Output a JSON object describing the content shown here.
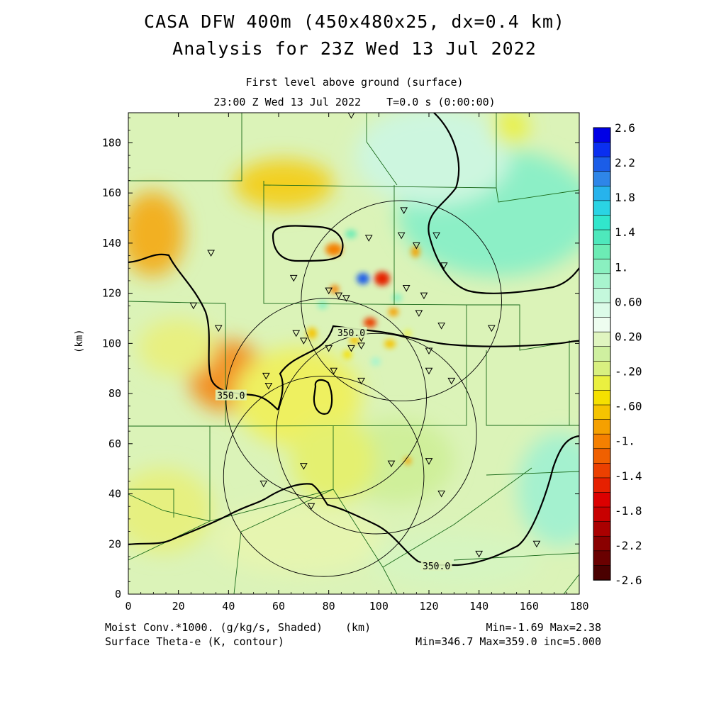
{
  "header": {
    "title_line1": "CASA DFW 400m (450x480x25, dx=0.4 km)",
    "title_line2": "Analysis for 23Z Wed 13 Jul 2022",
    "subtitle_line1": "First level above ground (surface)",
    "subtitle_line2": "23:00 Z Wed 13 Jul 2022    T=0.0 s (0:00:00)"
  },
  "footer": {
    "left_line1": "Moist Conv.*1000. (g/kg/s, Shaded)",
    "left_line2": "Surface Theta-e (K, contour)",
    "center_unit": "(km)",
    "right_line1": "Min=-1.69 Max=2.38",
    "right_line2": "Min=346.7 Max=359.0 inc=5.000"
  },
  "chart_data": {
    "type": "heatmap",
    "title": "CASA DFW 400m (450x480x25, dx=0.4 km) Analysis for 23Z Wed 13 Jul 2022",
    "xlabel": "(km)",
    "ylabel": "(km)",
    "xlim": [
      0,
      180
    ],
    "ylim": [
      0,
      192
    ],
    "x_ticks": [
      0,
      20,
      40,
      60,
      80,
      100,
      120,
      140,
      160,
      180
    ],
    "y_ticks": [
      0,
      20,
      40,
      60,
      80,
      100,
      120,
      140,
      160,
      180
    ],
    "field_range": {
      "min": -1.69,
      "max": 2.38
    },
    "contour_range": {
      "min": 346.7,
      "max": 359.0,
      "inc": 5.0
    },
    "contour_labels": [
      {
        "text": "350.0",
        "x": 89,
        "y": 104
      },
      {
        "text": "350.0",
        "x": 41,
        "y": 79
      },
      {
        "text": "350.0",
        "x": 123,
        "y": 11
      }
    ],
    "colorbar": {
      "labels": [
        "2.6",
        "2.2",
        "1.8",
        "1.4",
        "1.",
        "0.60",
        "0.20",
        "-.20",
        "-.60",
        "-1.",
        "-1.4",
        "-1.8",
        "-2.2",
        "-2.6"
      ],
      "colors": [
        "#0000e6",
        "#0a2ff0",
        "#1b5de8",
        "#2e86e8",
        "#27b3ec",
        "#2ad4e4",
        "#31e6cc",
        "#4ee8bc",
        "#6cecb5",
        "#8af0c0",
        "#a8f4ce",
        "#c4f8dc",
        "#dcfbe8",
        "#eefdf0",
        "#e0f5c0",
        "#cff0a0",
        "#d8f080",
        "#eaf040",
        "#f5e000",
        "#f5c400",
        "#f5a000",
        "#f58000",
        "#f06000",
        "#eb4000",
        "#e62000",
        "#dc0000",
        "#c80000",
        "#aa0000",
        "#8a0000",
        "#6a0000",
        "#4a0000"
      ]
    },
    "radar_circles": [
      {
        "cx": 78,
        "cy": 47,
        "r": 40
      },
      {
        "cx": 109,
        "cy": 117,
        "r": 40
      },
      {
        "cx": 79,
        "cy": 78,
        "r": 40
      },
      {
        "cx": 99,
        "cy": 64,
        "r": 40
      }
    ],
    "stations": [
      [
        89,
        191
      ],
      [
        110,
        153
      ],
      [
        33,
        136
      ],
      [
        96,
        142
      ],
      [
        109,
        143
      ],
      [
        115,
        139
      ],
      [
        123,
        143
      ],
      [
        126,
        131
      ],
      [
        66,
        126
      ],
      [
        80,
        121
      ],
      [
        84,
        119
      ],
      [
        87,
        118
      ],
      [
        111,
        122
      ],
      [
        118,
        119
      ],
      [
        26,
        115
      ],
      [
        116,
        112
      ],
      [
        125,
        107
      ],
      [
        36,
        106
      ],
      [
        145,
        106
      ],
      [
        67,
        104
      ],
      [
        70,
        101
      ],
      [
        80,
        98
      ],
      [
        89,
        98
      ],
      [
        93,
        99
      ],
      [
        93,
        102
      ],
      [
        120,
        97
      ],
      [
        120,
        89
      ],
      [
        129,
        85
      ],
      [
        82,
        89
      ],
      [
        93,
        85
      ],
      [
        55,
        87
      ],
      [
        56,
        83
      ],
      [
        70,
        51
      ],
      [
        105,
        52
      ],
      [
        120,
        53
      ],
      [
        54,
        44
      ],
      [
        125,
        40
      ],
      [
        73,
        35
      ],
      [
        140,
        16
      ],
      [
        163,
        20
      ]
    ]
  }
}
